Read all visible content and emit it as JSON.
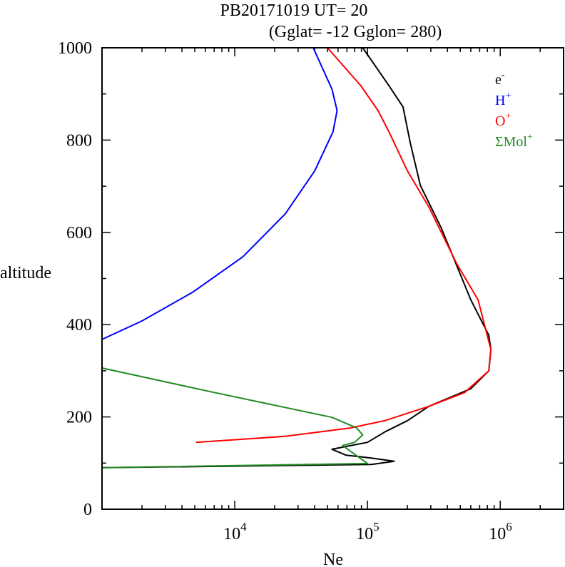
{
  "chart_data": {
    "type": "line",
    "title_line1": "PB20171019   UT=  20",
    "title_line2": "(Gglat= -12   Gglon=  280)",
    "xlabel": "Ne",
    "ylabel": "altitude",
    "xscale": "log",
    "xlim": [
      1000,
      3000000
    ],
    "ylim": [
      0,
      1000
    ],
    "yticks": [
      "0",
      "200",
      "400",
      "600",
      "800",
      "1000"
    ],
    "ytick_values": [
      0,
      200,
      400,
      600,
      800,
      1000
    ],
    "xticks": [
      {
        "base": "10",
        "exp": "4",
        "value": 10000
      },
      {
        "base": "10",
        "exp": "5",
        "value": 100000
      },
      {
        "base": "10",
        "exp": "6",
        "value": 1000000
      }
    ],
    "legend_position": "top-right",
    "series": [
      {
        "name": "e-",
        "label": "e",
        "sup": "-",
        "color": "#000000",
        "points": [
          [
            92000,
            1000
          ],
          [
            145000,
            918
          ],
          [
            185000,
            872
          ],
          [
            210000,
            794
          ],
          [
            250000,
            702
          ],
          [
            360000,
            609
          ],
          [
            600000,
            454
          ],
          [
            820000,
            377
          ],
          [
            850000,
            346
          ],
          [
            820000,
            300
          ],
          [
            600000,
            261
          ],
          [
            290000,
            223
          ],
          [
            200000,
            192
          ],
          [
            136000,
            168
          ],
          [
            100000,
            145
          ],
          [
            54000,
            130
          ],
          [
            69000,
            117
          ],
          [
            107000,
            111
          ],
          [
            159000,
            104
          ],
          [
            107000,
            97
          ],
          [
            1000,
            90
          ]
        ]
      },
      {
        "name": "H+",
        "label": "H",
        "sup": "+",
        "color": "#0000ff",
        "points": [
          [
            39000,
            1000
          ],
          [
            54000,
            910
          ],
          [
            59000,
            864
          ],
          [
            55000,
            818
          ],
          [
            40000,
            733
          ],
          [
            24000,
            640
          ],
          [
            11500,
            547
          ],
          [
            4800,
            470
          ],
          [
            2000,
            408
          ],
          [
            1000,
            368
          ]
        ]
      },
      {
        "name": "O+",
        "label": "O",
        "sup": "+",
        "color": "#ff0000",
        "points": [
          [
            50000,
            1000
          ],
          [
            89000,
            918
          ],
          [
            120000,
            864
          ],
          [
            145000,
            818
          ],
          [
            200000,
            733
          ],
          [
            290000,
            655
          ],
          [
            470000,
            532
          ],
          [
            680000,
            454
          ],
          [
            850000,
            346
          ],
          [
            820000,
            300
          ],
          [
            540000,
            253
          ],
          [
            290000,
            223
          ],
          [
            135000,
            192
          ],
          [
            74000,
            176
          ],
          [
            24000,
            158
          ],
          [
            5100,
            145
          ]
        ]
      },
      {
        "name": "ΣMol+",
        "label": "ΣMol",
        "sup": "+",
        "color": "#228b22",
        "points": [
          [
            1000,
            306
          ],
          [
            7000,
            253
          ],
          [
            54000,
            199
          ],
          [
            83000,
            176
          ],
          [
            92000,
            161
          ],
          [
            80000,
            145
          ],
          [
            65000,
            138
          ],
          [
            100000,
            99
          ],
          [
            1000,
            90
          ]
        ]
      }
    ]
  }
}
